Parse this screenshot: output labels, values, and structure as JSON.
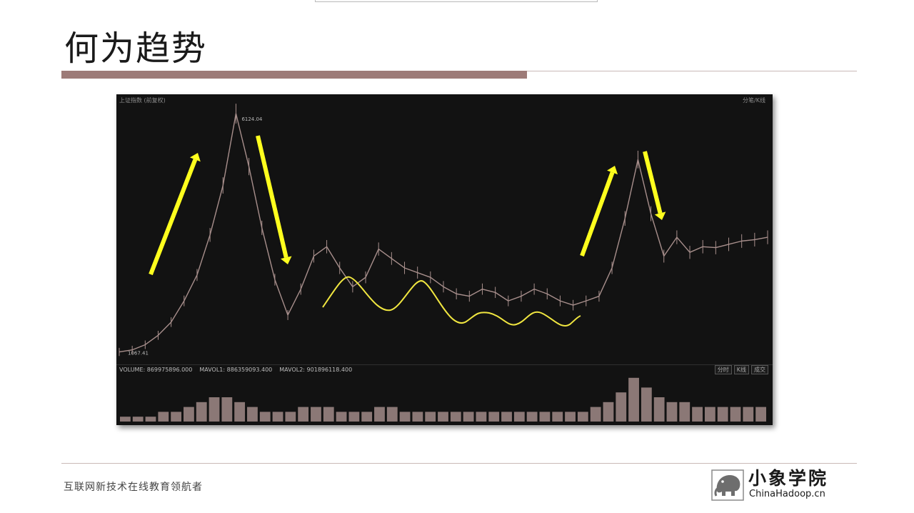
{
  "slide": {
    "title": "何为趋势",
    "footer_slogan": "互联网新技术在线教育领航者"
  },
  "logo": {
    "name_cn": "小象学院",
    "name_en": "ChinaHadoop.cn",
    "icon": "elephant-logo-icon"
  },
  "chart_header": {
    "left": "上证指数 (前复权)",
    "right": "分笔/K线"
  },
  "volume_panel": {
    "legend_prefix": "VOLUME",
    "volume": "VOLUME: 869975896.000",
    "mavol1": "MAVOL1: 886359093.400",
    "mavol2": "MAVOL2: 901896118.400",
    "tabs": [
      "分时",
      "K线",
      "成交"
    ]
  },
  "colors": {
    "background": "#121212",
    "price_line": "#a88f8c",
    "arrow": "#ffff1e",
    "annotation_curve": "#f0e640",
    "volume": "#b49b98",
    "title_rule": "#9d7b78"
  },
  "chart_data": {
    "type": "line",
    "title": "上证指数 (前复权)",
    "series": [
      {
        "name": "上证指数",
        "x": [
          0,
          2,
          4,
          6,
          8,
          10,
          12,
          14,
          16,
          18,
          20,
          22,
          24,
          26,
          28,
          30,
          32,
          34,
          36,
          38,
          40,
          42,
          44,
          46,
          48,
          50,
          52,
          54,
          56,
          58,
          60,
          62,
          64,
          66,
          68,
          70,
          72,
          74,
          76,
          78,
          80,
          82,
          84,
          86,
          88,
          90,
          92,
          94,
          96,
          98,
          100
        ],
        "values": [
          1067,
          1110,
          1220,
          1420,
          1700,
          2150,
          2700,
          3550,
          4600,
          6124,
          5000,
          3700,
          2600,
          1850,
          2400,
          3100,
          3300,
          2850,
          2450,
          2650,
          3250,
          3050,
          2850,
          2750,
          2650,
          2450,
          2300,
          2250,
          2400,
          2330,
          2150,
          2250,
          2400,
          2300,
          2150,
          2060,
          2150,
          2250,
          2850,
          3900,
          5150,
          4000,
          3100,
          3500,
          3180,
          3300,
          3280,
          3350,
          3420,
          3450,
          3500
        ]
      }
    ],
    "annotations": {
      "max_label": "6124.04",
      "min_label": "1067.41",
      "arrows": [
        {
          "direction": "up",
          "from": 0,
          "to": 8
        },
        {
          "direction": "down",
          "from": 10,
          "to": 18
        },
        {
          "direction": "up",
          "from": 73,
          "to": 80
        },
        {
          "direction": "down",
          "from": 82,
          "to": 87
        }
      ],
      "curve": "sideways trend (oscillating) highlighted in yellow from x≈31 to x≈71"
    },
    "volume": [
      1,
      1,
      1,
      2,
      2,
      3,
      4,
      5,
      5,
      4,
      3,
      2,
      2,
      2,
      3,
      3,
      3,
      2,
      2,
      2,
      3,
      3,
      2,
      2,
      2,
      2,
      2,
      2,
      2,
      2,
      2,
      2,
      2,
      2,
      2,
      2,
      2,
      3,
      4,
      6,
      9,
      7,
      5,
      4,
      4,
      3,
      3,
      3,
      3,
      3,
      3
    ]
  }
}
